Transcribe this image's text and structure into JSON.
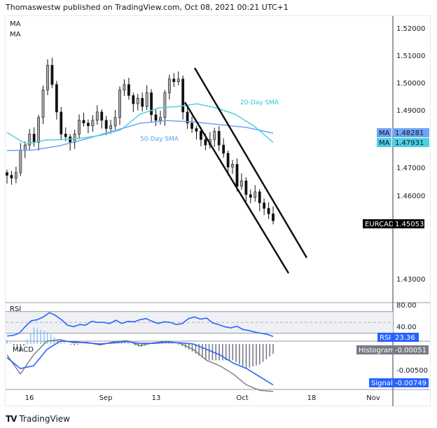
{
  "header": {
    "text": "Thomaswestw published on TradingView.com, Oct 08, 2021 00:21 UTC+1"
  },
  "legend": [
    "MA",
    "MA"
  ],
  "footer": {
    "brand": "TradingView"
  },
  "colors": {
    "sma20": "#4dd0e1",
    "sma50": "#6ea4f5",
    "rsi": "#2962ff",
    "signal": "#2962ff",
    "macd": "#787b86",
    "hist_pos": "#90bff9",
    "hist_neg": "#787b86"
  },
  "chart_data": [
    {
      "type": "candlestick",
      "symbol": "EURCAD",
      "price_ticks": [
        "1.52000",
        "1.51000",
        "1.50000",
        "1.49000",
        "1.47000",
        "1.46000",
        "1.43000"
      ],
      "x_ticks": [
        "16",
        "Sep",
        "13",
        "Oct",
        "18",
        "Nov"
      ],
      "ylim": [
        1.425,
        1.52
      ],
      "closes": [
        1.467,
        1.466,
        1.468,
        1.476,
        1.478,
        1.482,
        1.479,
        1.488,
        1.498,
        1.507,
        1.5,
        1.49,
        1.482,
        1.481,
        1.479,
        1.482,
        1.487,
        1.486,
        1.485,
        1.487,
        1.49,
        1.487,
        1.484,
        1.485,
        1.488,
        1.498,
        1.5,
        1.496,
        1.493,
        1.495,
        1.492,
        1.497,
        1.489,
        1.487,
        1.488,
        1.497,
        1.502,
        1.501,
        1.502,
        1.49,
        1.486,
        1.484,
        1.483,
        1.48,
        1.478,
        1.48,
        1.483,
        1.478,
        1.475,
        1.47,
        1.471,
        1.463,
        1.465,
        1.46,
        1.459,
        1.461,
        1.457,
        1.455,
        1.453,
        1.4505
      ],
      "last_price": {
        "label": "EURCAD",
        "value": "1.45053"
      },
      "sma20": {
        "label": "20-Day SMA",
        "tag": "MA",
        "value": "1.47931",
        "values": [
          1.4826,
          1.4783,
          1.4798,
          1.48,
          1.4806,
          1.4816,
          1.4836,
          1.4892,
          1.4915,
          1.492,
          1.493,
          1.4915,
          1.4892,
          1.4849,
          1.479
        ]
      },
      "sma50": {
        "label": "50-Day SMA",
        "tag": "MA",
        "value": "1.48281",
        "values": [
          1.476,
          1.4762,
          1.4778,
          1.4803,
          1.4831,
          1.4859,
          1.4869,
          1.4864,
          1.4854,
          1.4844,
          1.4823
        ]
      }
    },
    {
      "type": "line",
      "title": "RSI",
      "ticks": [
        "80.00",
        "40.00"
      ],
      "bands": [
        70,
        50,
        30
      ],
      "ylim": [
        20,
        85
      ],
      "values": [
        25,
        26,
        30,
        42,
        53,
        55,
        60,
        68,
        63,
        55,
        45,
        42,
        46,
        45,
        52,
        50,
        50,
        48,
        54,
        48,
        52,
        51,
        55,
        57,
        52,
        48,
        51,
        50,
        46,
        48,
        57,
        60,
        56,
        58,
        49,
        46,
        42,
        40,
        43,
        37,
        35,
        32,
        30,
        28,
        24
      ],
      "tag": "RSI",
      "value": "23.36"
    },
    {
      "type": "line",
      "title": "MACD",
      "ticks": [
        "-0.00500"
      ],
      "macd": [
        -0.002,
        -0.0055,
        -0.002,
        0.0005,
        0.0008,
        0.0002,
        0.0003,
        -0.0002,
        0.0004,
        0.0006,
        -0.0003,
        0.0002,
        0.0005,
        0.0001,
        -0.001,
        -0.003,
        -0.004,
        -0.0055,
        -0.0075,
        -0.0085,
        -0.0087
      ],
      "signal": [
        -0.0025,
        -0.0045,
        -0.004,
        -0.001,
        0.0005,
        0.0004,
        0.0002,
        0.0,
        0.0002,
        0.0004,
        0.0001,
        0.0001,
        0.0003,
        0.0002,
        0.0,
        -0.001,
        -0.002,
        -0.0035,
        -0.0045,
        -0.006,
        -0.0075
      ],
      "histogram_tag": "Histogram",
      "histogram_value": "-0.00051",
      "signal_tag": "Signal",
      "signal_value": "-0.00749"
    }
  ]
}
